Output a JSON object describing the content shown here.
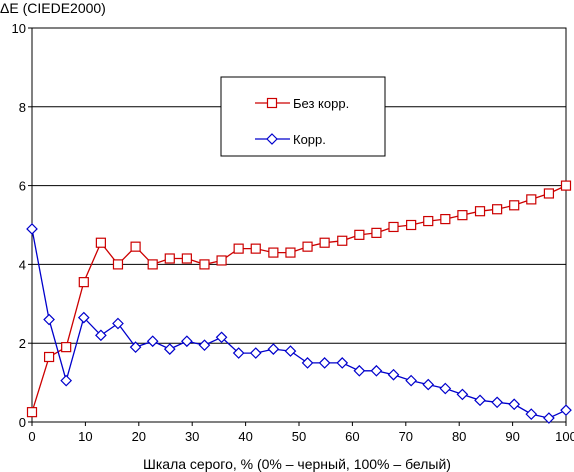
{
  "chart_data": {
    "type": "line",
    "ylabel": "ΔE (CIEDE2000)",
    "xlabel": "Шкала серого, % (0% – черный, 100% – белый)",
    "xlim": [
      0,
      100
    ],
    "ylim": [
      0,
      10
    ],
    "xticks": [
      0,
      10,
      20,
      30,
      40,
      50,
      60,
      70,
      80,
      90,
      100
    ],
    "yticks": [
      0,
      2,
      4,
      6,
      8,
      10
    ],
    "grid": "horizontal",
    "legend_position": "upper-center",
    "x": [
      0,
      3.2,
      6.4,
      9.7,
      12.9,
      16.1,
      19.4,
      22.6,
      25.8,
      29.0,
      32.3,
      35.5,
      38.7,
      41.9,
      45.2,
      48.4,
      51.6,
      54.8,
      58.1,
      61.3,
      64.5,
      67.7,
      71.0,
      74.2,
      77.4,
      80.6,
      83.9,
      87.1,
      90.3,
      93.5,
      96.8,
      100
    ],
    "series": [
      {
        "name": "Без корр.",
        "color": "#cc0000",
        "marker": "square",
        "values": [
          0.25,
          1.65,
          1.9,
          3.55,
          4.55,
          4.0,
          4.45,
          4.0,
          4.15,
          4.15,
          4.0,
          4.1,
          4.4,
          4.4,
          4.3,
          4.3,
          4.45,
          4.55,
          4.6,
          4.75,
          4.8,
          4.95,
          5.0,
          5.1,
          5.15,
          5.25,
          5.35,
          5.4,
          5.5,
          5.65,
          5.8,
          6.0
        ]
      },
      {
        "name": "Корр.",
        "color": "#0000cc",
        "marker": "diamond",
        "values": [
          4.9,
          2.6,
          1.05,
          2.65,
          2.2,
          2.5,
          1.9,
          2.05,
          1.85,
          2.05,
          1.95,
          2.15,
          1.75,
          1.75,
          1.85,
          1.8,
          1.5,
          1.5,
          1.5,
          1.3,
          1.3,
          1.2,
          1.05,
          0.95,
          0.85,
          0.7,
          0.55,
          0.5,
          0.45,
          0.2,
          0.1,
          0.3
        ]
      }
    ]
  }
}
